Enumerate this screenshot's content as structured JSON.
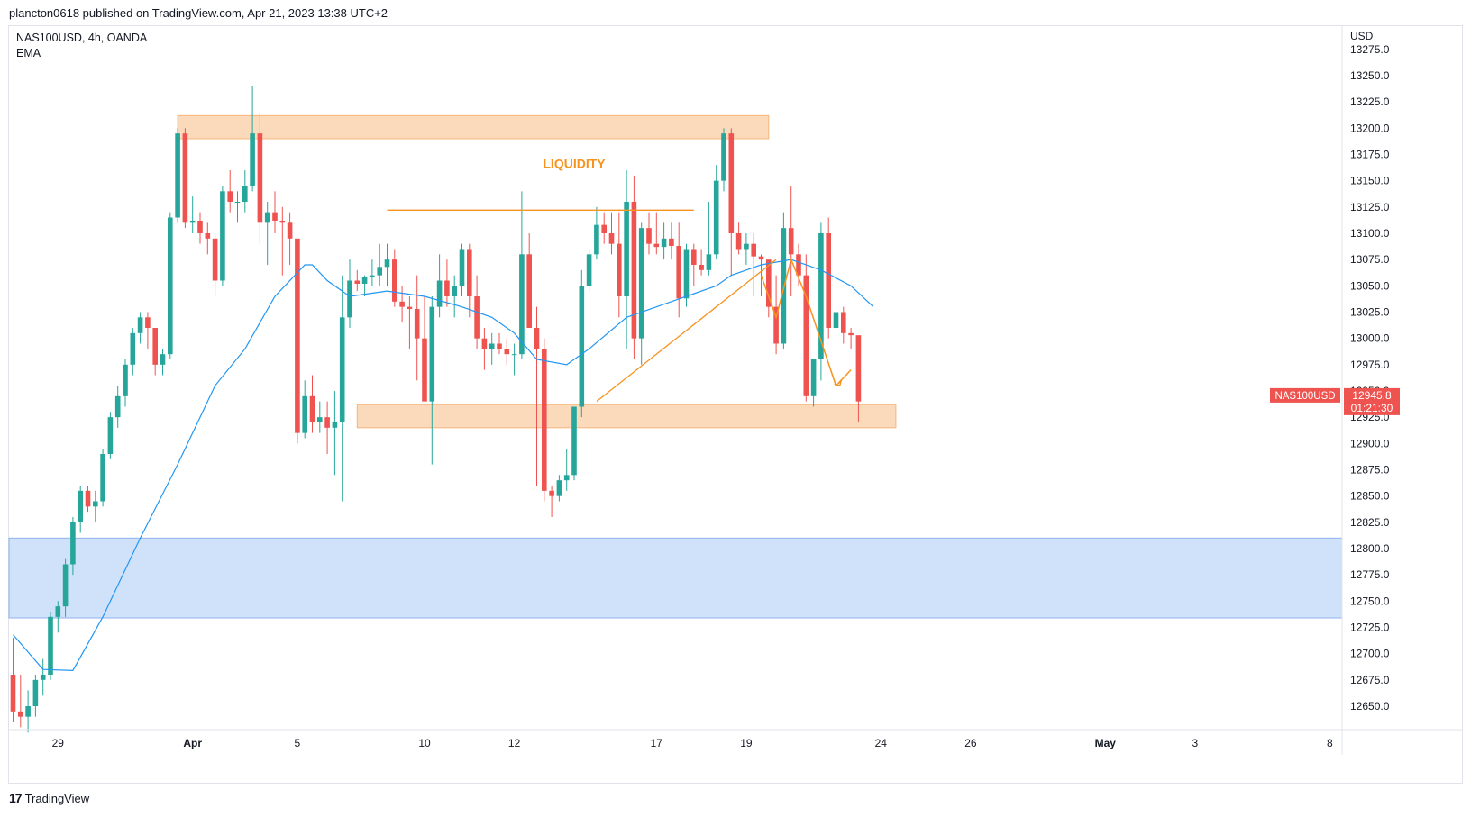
{
  "header": {
    "published_line": "plancton0618 published on TradingView.com, Apr 21, 2023 13:38 UTC+2"
  },
  "legend": {
    "symbol_line": "NAS100USD, 4h, OANDA",
    "indicator": "EMA"
  },
  "footer": {
    "brand": "TradingView",
    "logo_glyph": "17"
  },
  "colors": {
    "up": "#26a69a",
    "down": "#ef5350",
    "ema": "#2196f3",
    "supply": "#f7b57a",
    "demand": "#aac8f5",
    "annot": "#f7931e",
    "grid": "#e0e3eb"
  },
  "chart_data": {
    "type": "candlestick",
    "symbol": "NAS100USD",
    "timeframe": "4h",
    "currency_label": "USD",
    "y_axis": {
      "min": 12625,
      "max": 13285,
      "ticks": [
        12650,
        12675,
        12700,
        12725,
        12750,
        12775,
        12800,
        12825,
        12850,
        12875,
        12900,
        12925,
        12950,
        12975,
        13000,
        13025,
        13050,
        13075,
        13100,
        13125,
        13150,
        13175,
        13200,
        13225,
        13250,
        13275
      ],
      "tick_labels": [
        "12650.0",
        "12675.0",
        "12700.0",
        "12725.0",
        "12750.0",
        "12775.0",
        "12800.0",
        "12825.0",
        "12850.0",
        "12875.0",
        "12900.0",
        "12925.0",
        "12950.0",
        "12975.0",
        "13000.0",
        "13025.0",
        "13050.0",
        "13075.0",
        "13100.0",
        "13125.0",
        "13150.0",
        "13175.0",
        "13200.0",
        "13225.0",
        "13250.0",
        "13275.0"
      ]
    },
    "x_axis": {
      "labels": [
        "29",
        "Apr",
        "5",
        "10",
        "12",
        "17",
        "19",
        "24",
        "26",
        "May",
        "3",
        "8"
      ],
      "bold": [
        "Apr",
        "May"
      ],
      "label_bar_index": [
        6,
        24,
        38,
        55,
        67,
        86,
        98,
        116,
        128,
        146,
        158,
        176
      ]
    },
    "last_price": {
      "value": 12945.8,
      "label": "12945.8",
      "countdown": "01:21:30",
      "symbol_tag": "NAS100USD"
    },
    "candles_ohlc": [
      [
        12680,
        12715,
        12635,
        12645
      ],
      [
        12645,
        12680,
        12630,
        12640
      ],
      [
        12640,
        12665,
        12625,
        12650
      ],
      [
        12650,
        12680,
        12640,
        12675
      ],
      [
        12675,
        12695,
        12660,
        12680
      ],
      [
        12680,
        12740,
        12675,
        12735
      ],
      [
        12735,
        12750,
        12720,
        12745
      ],
      [
        12745,
        12790,
        12735,
        12785
      ],
      [
        12785,
        12830,
        12775,
        12825
      ],
      [
        12825,
        12860,
        12815,
        12855
      ],
      [
        12855,
        12860,
        12835,
        12840
      ],
      [
        12840,
        12855,
        12825,
        12845
      ],
      [
        12845,
        12895,
        12840,
        12890
      ],
      [
        12890,
        12930,
        12885,
        12925
      ],
      [
        12925,
        12955,
        12915,
        12945
      ],
      [
        12945,
        12980,
        12935,
        12975
      ],
      [
        12975,
        13010,
        12965,
        13005
      ],
      [
        13005,
        13025,
        12995,
        13020
      ],
      [
        13020,
        13025,
        12990,
        13010
      ],
      [
        13010,
        12995,
        12965,
        12975
      ],
      [
        12975,
        12990,
        12965,
        12985
      ],
      [
        12985,
        13120,
        12980,
        13115
      ],
      [
        13115,
        13200,
        13110,
        13195
      ],
      [
        13195,
        13200,
        13105,
        13110
      ],
      [
        13110,
        13135,
        13100,
        13112
      ],
      [
        13112,
        13120,
        13090,
        13100
      ],
      [
        13100,
        13110,
        13080,
        13095
      ],
      [
        13095,
        13100,
        13040,
        13055
      ],
      [
        13055,
        13145,
        13050,
        13140
      ],
      [
        13140,
        13160,
        13120,
        13130
      ],
      [
        13130,
        13140,
        13110,
        13130
      ],
      [
        13130,
        13160,
        13120,
        13145
      ],
      [
        13145,
        13240,
        13140,
        13195
      ],
      [
        13195,
        13215,
        13090,
        13110
      ],
      [
        13110,
        13130,
        13070,
        13120
      ],
      [
        13120,
        13140,
        13100,
        13112
      ],
      [
        13112,
        13125,
        13060,
        13110
      ],
      [
        13110,
        13120,
        13070,
        13095
      ],
      [
        13095,
        13090,
        12900,
        12910
      ],
      [
        12910,
        12960,
        12905,
        12945
      ],
      [
        12945,
        12965,
        12910,
        12920
      ],
      [
        12920,
        12940,
        12910,
        12925
      ],
      [
        12925,
        12940,
        12890,
        12915
      ],
      [
        12915,
        12950,
        12870,
        12920
      ],
      [
        12920,
        13060,
        12845,
        13020
      ],
      [
        13020,
        13075,
        13010,
        13055
      ],
      [
        13055,
        13065,
        13045,
        13052
      ],
      [
        13052,
        13060,
        13040,
        13058
      ],
      [
        13058,
        13075,
        13050,
        13060
      ],
      [
        13060,
        13090,
        13050,
        13068
      ],
      [
        13068,
        13090,
        13050,
        13075
      ],
      [
        13075,
        13085,
        13030,
        13035
      ],
      [
        13035,
        13050,
        13015,
        13030
      ],
      [
        13030,
        13040,
        12990,
        13028
      ],
      [
        13028,
        13060,
        12960,
        13000
      ],
      [
        13000,
        13040,
        12950,
        12940
      ],
      [
        12940,
        13040,
        12880,
        13030
      ],
      [
        13030,
        13080,
        13020,
        13055
      ],
      [
        13055,
        13075,
        13030,
        13040
      ],
      [
        13040,
        13060,
        13020,
        13050
      ],
      [
        13050,
        13090,
        13040,
        13085
      ],
      [
        13085,
        13090,
        13020,
        13040
      ],
      [
        13040,
        13060,
        12990,
        13000
      ],
      [
        13000,
        13010,
        12970,
        12990
      ],
      [
        12990,
        13005,
        12975,
        12995
      ],
      [
        12995,
        13005,
        12985,
        12990
      ],
      [
        12990,
        13000,
        12975,
        12985
      ],
      [
        12985,
        12995,
        12965,
        12985
      ],
      [
        12985,
        13140,
        12980,
        13080
      ],
      [
        13080,
        13100,
        13040,
        13010
      ],
      [
        13010,
        13030,
        12860,
        12990
      ],
      [
        12990,
        13000,
        12845,
        12855
      ],
      [
        12855,
        12860,
        12830,
        12850
      ],
      [
        12850,
        12870,
        12845,
        12865
      ],
      [
        12865,
        12895,
        12855,
        12870
      ],
      [
        12870,
        12915,
        12865,
        12935
      ],
      [
        12935,
        13065,
        12925,
        13050
      ],
      [
        13050,
        13085,
        13045,
        13080
      ],
      [
        13080,
        13125,
        13075,
        13108
      ],
      [
        13108,
        13120,
        13090,
        13100
      ],
      [
        13100,
        13120,
        13080,
        13090
      ],
      [
        13090,
        13120,
        13020,
        13040
      ],
      [
        13040,
        13160,
        12990,
        13130
      ],
      [
        13130,
        13155,
        12980,
        13000
      ],
      [
        13000,
        13110,
        12975,
        13105
      ],
      [
        13105,
        13120,
        13080,
        13090
      ],
      [
        13090,
        13120,
        13080,
        13087
      ],
      [
        13087,
        13110,
        13075,
        13095
      ],
      [
        13095,
        13110,
        13075,
        13088
      ],
      [
        13088,
        13110,
        13020,
        13038
      ],
      [
        13038,
        13090,
        13030,
        13085
      ],
      [
        13085,
        13090,
        13050,
        13070
      ],
      [
        13070,
        13085,
        13060,
        13065
      ],
      [
        13065,
        13130,
        13060,
        13080
      ],
      [
        13080,
        13165,
        13075,
        13150
      ],
      [
        13150,
        13200,
        13140,
        13195
      ],
      [
        13195,
        13200,
        13060,
        13100
      ],
      [
        13100,
        13110,
        13080,
        13085
      ],
      [
        13085,
        13100,
        13070,
        13090
      ],
      [
        13090,
        13100,
        13040,
        13078
      ],
      [
        13078,
        13080,
        13040,
        13075
      ],
      [
        13075,
        13070,
        13020,
        13030
      ],
      [
        13030,
        13060,
        12985,
        12995
      ],
      [
        12995,
        13120,
        12990,
        13105
      ],
      [
        13105,
        13145,
        13040,
        13080
      ],
      [
        13080,
        13090,
        13050,
        13060
      ],
      [
        13060,
        13080,
        12940,
        12945
      ],
      [
        12945,
        12980,
        12935,
        12980
      ],
      [
        12980,
        13110,
        12960,
        13100
      ],
      [
        13100,
        13115,
        13000,
        13010
      ],
      [
        13010,
        13030,
        12990,
        13025
      ],
      [
        13025,
        13030,
        12995,
        13005
      ],
      [
        13005,
        13010,
        12990,
        13003
      ],
      [
        13003,
        13000,
        12920,
        12940
      ]
    ],
    "ema": [
      [
        0,
        12718
      ],
      [
        4,
        12685
      ],
      [
        8,
        12684
      ],
      [
        12,
        12735
      ],
      [
        17,
        12810
      ],
      [
        22,
        12880
      ],
      [
        27,
        12955
      ],
      [
        31,
        12990
      ],
      [
        35,
        13040
      ],
      [
        39,
        13070
      ],
      [
        40,
        13070
      ],
      [
        42,
        13055
      ],
      [
        45,
        13040
      ],
      [
        50,
        13045
      ],
      [
        55,
        13040
      ],
      [
        60,
        13030
      ],
      [
        64,
        13020
      ],
      [
        67,
        13005
      ],
      [
        70,
        12980
      ],
      [
        74,
        12975
      ],
      [
        77,
        12990
      ],
      [
        82,
        13020
      ],
      [
        86,
        13030
      ],
      [
        90,
        13040
      ],
      [
        94,
        13050
      ],
      [
        96,
        13060
      ],
      [
        100,
        13070
      ],
      [
        104,
        13075
      ],
      [
        108,
        13065
      ],
      [
        112,
        13050
      ],
      [
        115,
        13030
      ]
    ],
    "zones": [
      {
        "name": "supply-zone",
        "bar_from": 22,
        "bar_to": 101,
        "price_top": 13212,
        "price_bottom": 13190
      },
      {
        "name": "support-zone",
        "bar_from": 46,
        "bar_to": 118,
        "price_top": 12937,
        "price_bottom": 12915
      },
      {
        "name": "demand-zone",
        "bar_from": -1,
        "bar_to": 186,
        "price_top": 12810,
        "price_bottom": 12734
      }
    ],
    "annotations": {
      "liquidity_text": "LIQUIDITY",
      "liquidity_level": 13122,
      "liquidity_bar_from": 50,
      "liquidity_bar_to": 91,
      "text_anchor_bar": 75,
      "text_anchor_price": 13162,
      "trendline": [
        [
          78,
          12940
        ],
        [
          102,
          13075
        ]
      ],
      "projection": [
        [
          100,
          13060
        ],
        [
          102,
          13020
        ],
        [
          104,
          13075
        ],
        [
          106,
          13040
        ],
        [
          110,
          12955
        ],
        [
          112,
          12970
        ]
      ],
      "arrow_tip_bar": 110.5,
      "arrow_tip_price": 12955
    }
  }
}
